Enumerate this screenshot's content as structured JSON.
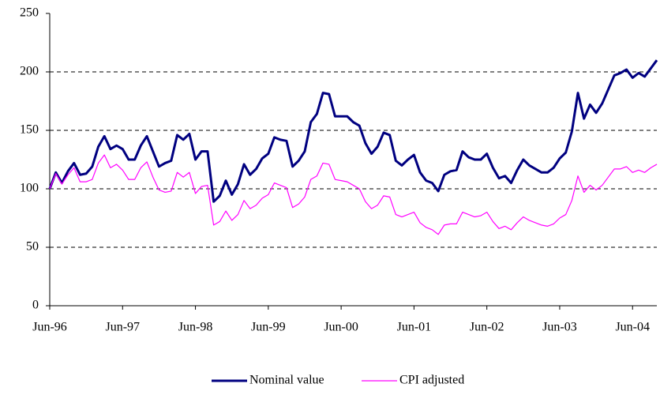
{
  "chart_data": {
    "type": "line",
    "categories": [
      "Jun-96",
      null,
      null,
      null,
      null,
      null,
      null,
      null,
      null,
      null,
      null,
      null,
      "Jun-97",
      null,
      null,
      null,
      null,
      null,
      null,
      null,
      null,
      null,
      null,
      null,
      "Jun-98",
      null,
      null,
      null,
      null,
      null,
      null,
      null,
      null,
      null,
      null,
      null,
      "Jun-99",
      null,
      null,
      null,
      null,
      null,
      null,
      null,
      null,
      null,
      null,
      null,
      "Jun-00",
      null,
      null,
      null,
      null,
      null,
      null,
      null,
      null,
      null,
      null,
      null,
      "Jun-01",
      null,
      null,
      null,
      null,
      null,
      null,
      null,
      null,
      null,
      null,
      null,
      "Jun-02",
      null,
      null,
      null,
      null,
      null,
      null,
      null,
      null,
      null,
      null,
      null,
      "Jun-03",
      null,
      null,
      null,
      null,
      null,
      null,
      null,
      null,
      null,
      null,
      null,
      "Jun-04",
      null,
      null,
      null,
      null
    ],
    "series": [
      {
        "name": "Nominal value",
        "color": "#000080",
        "values": [
          100,
          114,
          105,
          115,
          122,
          112,
          113,
          119,
          136,
          145,
          134,
          137,
          134,
          125,
          125,
          137,
          145,
          132,
          119,
          122,
          124,
          146,
          142,
          147,
          125,
          132,
          132,
          89,
          94,
          107,
          95,
          104,
          121,
          112,
          117,
          126,
          130,
          144,
          142,
          141,
          119,
          124,
          132,
          157,
          164,
          182,
          181,
          162,
          162,
          162,
          157,
          154,
          139,
          130,
          136,
          148,
          146,
          124,
          120,
          125,
          129,
          114,
          107,
          105,
          98,
          112,
          115,
          116,
          132,
          127,
          125,
          125,
          130,
          118,
          109,
          111,
          105,
          116,
          125,
          120,
          117,
          114,
          114,
          118,
          126,
          131,
          149,
          182,
          160,
          172,
          165,
          173,
          185,
          197,
          199,
          202,
          195,
          199,
          196,
          203,
          210
        ]
      },
      {
        "name": "CPI adjusted",
        "color": "#ff00ff",
        "values": [
          100,
          113,
          104,
          112,
          118,
          106,
          106,
          108,
          122,
          129,
          118,
          121,
          116,
          108,
          108,
          118,
          123,
          110,
          99,
          97,
          98,
          114,
          110,
          114,
          96,
          102,
          103,
          69,
          72,
          81,
          73,
          78,
          90,
          83,
          86,
          92,
          95,
          105,
          103,
          101,
          84,
          87,
          93,
          108,
          111,
          122,
          121,
          108,
          107,
          106,
          103,
          100,
          89,
          83,
          86,
          94,
          93,
          78,
          76,
          78,
          80,
          71,
          67,
          65,
          61,
          69,
          70,
          70,
          80,
          78,
          76,
          77,
          80,
          72,
          66,
          68,
          65,
          71,
          76,
          73,
          71,
          69,
          68,
          70,
          75,
          78,
          90,
          111,
          97,
          103,
          99,
          103,
          110,
          117,
          117,
          119,
          114,
          116,
          114,
          118,
          121
        ]
      }
    ],
    "ylim": [
      0,
      250
    ],
    "yticks": [
      0,
      50,
      100,
      150,
      200,
      250
    ],
    "grid": true
  }
}
